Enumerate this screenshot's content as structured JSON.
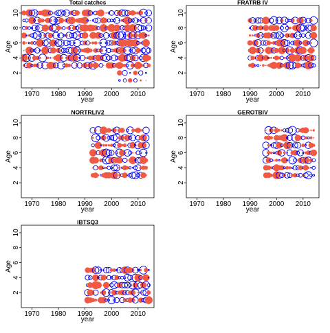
{
  "chart_data": [
    {
      "type": "scatter",
      "title": "Total catches",
      "xlabel": "year",
      "ylabel": "Age",
      "xlim": [
        1966,
        2016
      ],
      "ylim": [
        0,
        11
      ],
      "xticks": [
        1970,
        1980,
        1990,
        2000,
        2010
      ],
      "yticks": [
        2,
        4,
        6,
        8,
        10
      ],
      "years": [
        1967,
        2014
      ],
      "ages": [
        3,
        10
      ],
      "extra": [
        {
          "year": 2003,
          "age": 2
        },
        {
          "year": 2005,
          "age": 2
        },
        {
          "year": 2007,
          "age": 2
        },
        {
          "year": 2009,
          "age": 2
        },
        {
          "year": 2011,
          "age": 2
        },
        {
          "year": 2013,
          "age": 2
        },
        {
          "year": 2003,
          "age": 1
        },
        {
          "year": 2005,
          "age": 1
        },
        {
          "year": 2007,
          "age": 1
        },
        {
          "year": 2009,
          "age": 1
        },
        {
          "year": 2011,
          "age": 1
        },
        {
          "year": 2013,
          "age": 1
        }
      ]
    },
    {
      "type": "scatter",
      "title": "FRATRB IV",
      "xlabel": "year",
      "ylabel": "Age",
      "xlim": [
        1966,
        2016
      ],
      "ylim": [
        0,
        11
      ],
      "xticks": [
        1970,
        1980,
        1990,
        2000,
        2010
      ],
      "yticks": [
        2,
        4,
        6,
        8,
        10
      ],
      "years": [
        1990,
        2014
      ],
      "ages": [
        3,
        9
      ],
      "extra": []
    },
    {
      "type": "scatter",
      "title": "NORTRLIV2",
      "xlabel": "year",
      "ylabel": "Age",
      "xlim": [
        1966,
        2016
      ],
      "ylim": [
        0,
        11
      ],
      "xticks": [
        1970,
        1980,
        1990,
        2000,
        2010
      ],
      "yticks": [
        2,
        4,
        6,
        8,
        10
      ],
      "years": [
        1993,
        2013
      ],
      "ages": [
        3,
        9
      ],
      "extra": []
    },
    {
      "type": "scatter",
      "title": "GEROTBIV",
      "xlabel": "year",
      "ylabel": "Age",
      "xlim": [
        1966,
        2016
      ],
      "ylim": [
        0,
        11
      ],
      "xticks": [
        1970,
        1980,
        1990,
        2000,
        2010
      ],
      "yticks": [
        2,
        4,
        6,
        8,
        10
      ],
      "years": [
        1996,
        2014
      ],
      "ages": [
        3,
        9
      ],
      "extra": []
    },
    {
      "type": "scatter",
      "title": "IBTSQ3",
      "xlabel": "year",
      "ylabel": "Age",
      "xlim": [
        1966,
        2016
      ],
      "ylim": [
        0,
        11
      ],
      "xticks": [
        1970,
        1980,
        1990,
        2000,
        2010
      ],
      "yticks": [
        2,
        4,
        6,
        8,
        10
      ],
      "years": [
        1991,
        2014
      ],
      "ages": [
        1,
        5
      ],
      "extra": []
    }
  ],
  "colors": {
    "positive": "#f05a45",
    "negative": "#0000ee",
    "axis": "#000000",
    "text": "#000000"
  }
}
